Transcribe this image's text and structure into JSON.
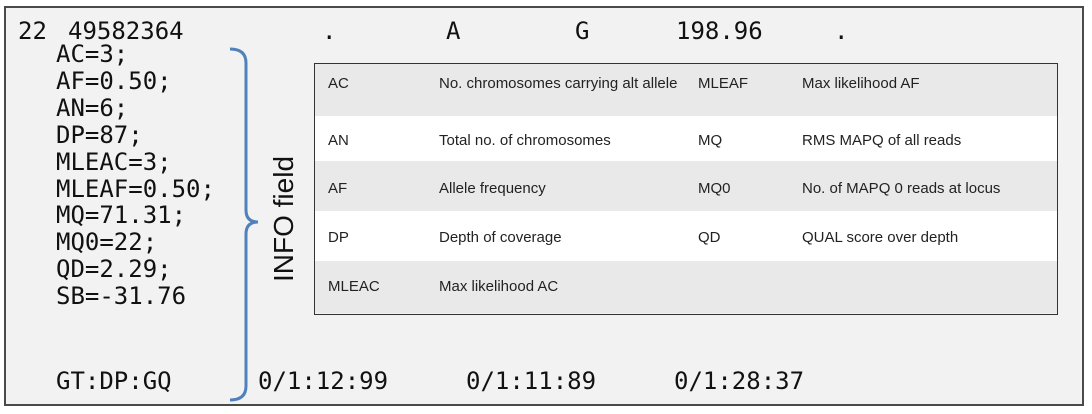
{
  "header": {
    "chrom": "22",
    "pos": "49582364",
    "id": ".",
    "ref": "A",
    "alt": "G",
    "qual": "198.96",
    "filter": "."
  },
  "info_fields": [
    "AC=3;",
    "AF=0.50;",
    "AN=6;",
    "DP=87;",
    "MLEAC=3;",
    "MLEAF=0.50;",
    "MQ=71.31;",
    "MQ0=22;",
    "QD=2.29;",
    "SB=-31.76"
  ],
  "format": "GT:DP:GQ",
  "samples": [
    "0/1:12:99",
    "0/1:11:89",
    "0/1:28:37"
  ],
  "info_label": "INFO field",
  "table": {
    "rows": [
      {
        "k1": "AC",
        "d1": "No. chromosomes carrying alt allele",
        "k2": "MLEAF",
        "d2": "Max likelihood AF"
      },
      {
        "k1": "AN",
        "d1": "Total no. of chromosomes",
        "k2": "MQ",
        "d2": "RMS MAPQ of all reads"
      },
      {
        "k1": "AF",
        "d1": "Allele frequency",
        "k2": "MQ0",
        "d2": "No. of MAPQ 0 reads at locus"
      },
      {
        "k1": "DP",
        "d1": "Depth of coverage",
        "k2": "QD",
        "d2": "QUAL score over depth"
      },
      {
        "k1": "MLEAC",
        "d1": "Max likelihood AC",
        "k2": "",
        "d2": ""
      }
    ]
  },
  "colors": {
    "bracket": "#4f81bd",
    "frame": "#f2f2f2",
    "border": "#4a4a4a"
  }
}
